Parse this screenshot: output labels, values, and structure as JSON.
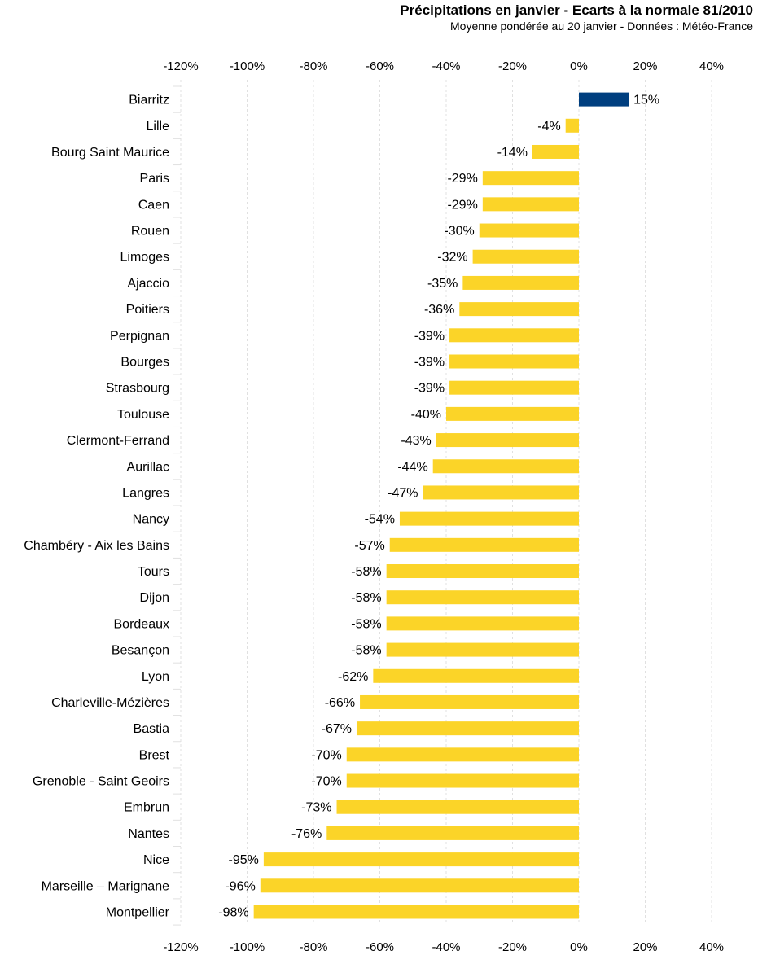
{
  "chart_data": {
    "type": "bar",
    "orientation": "horizontal",
    "title": "Précipitations en janvier - Ecarts à la normale 81/2010",
    "subtitle": "Moyenne pondérée au 20 janvier - Données : Météo-France",
    "xlim": [
      -120,
      40
    ],
    "xticks": [
      "-120%",
      "-100%",
      "-80%",
      "-60%",
      "-40%",
      "-20%",
      "0%",
      "20%",
      "40%"
    ],
    "tick_values": [
      -120,
      -100,
      -80,
      -60,
      -40,
      -20,
      0,
      20,
      40
    ],
    "categories": [
      "Biarritz",
      "Lille",
      "Bourg Saint Maurice",
      "Paris",
      "Caen",
      "Rouen",
      "Limoges",
      "Ajaccio",
      "Poitiers",
      "Perpignan",
      "Bourges",
      "Strasbourg",
      "Toulouse",
      "Clermont-Ferrand",
      "Aurillac",
      "Langres",
      "Nancy",
      "Chambéry - Aix les Bains",
      "Tours",
      "Dijon",
      "Bordeaux",
      "Besançon",
      "Lyon",
      "Charleville-Mézières",
      "Bastia",
      "Brest",
      "Grenoble - Saint Geoirs",
      "Embrun",
      "Nantes",
      "Nice",
      "Marseille – Marignane",
      "Montpellier"
    ],
    "values": [
      15,
      -4,
      -14,
      -29,
      -29,
      -30,
      -32,
      -35,
      -36,
      -39,
      -39,
      -39,
      -40,
      -43,
      -44,
      -47,
      -54,
      -57,
      -58,
      -58,
      -58,
      -58,
      -62,
      -66,
      -67,
      -70,
      -70,
      -73,
      -76,
      -95,
      -96,
      -98
    ],
    "labels": [
      "15%",
      "-4%",
      "-14%",
      "-29%",
      "-29%",
      "-30%",
      "-32%",
      "-35%",
      "-36%",
      "-39%",
      "-39%",
      "-39%",
      "-40%",
      "-43%",
      "-44%",
      "-47%",
      "-54%",
      "-57%",
      "-58%",
      "-58%",
      "-58%",
      "-58%",
      "-62%",
      "-66%",
      "-67%",
      "-70%",
      "-70%",
      "-73%",
      "-76%",
      "-95%",
      "-96%",
      "-98%"
    ],
    "colors": {
      "positive": "#003f7f",
      "negative": "#fbd428",
      "grid": "#e0e0e0"
    },
    "grid": true
  }
}
